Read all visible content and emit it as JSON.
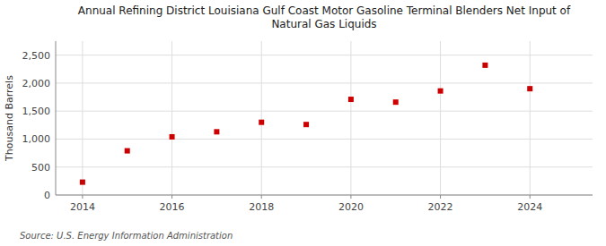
{
  "chart_data": {
    "type": "scatter",
    "title": "Annual Refining District Louisiana Gulf Coast Motor Gasoline Terminal Blenders Net Input of\nNatural Gas Liquids",
    "y_label": "Thousand Barrels",
    "source": "Source: U.S. Energy Information Administration",
    "x": [
      2014,
      2015,
      2016,
      2017,
      2018,
      2019,
      2020,
      2021,
      2022,
      2023,
      2024
    ],
    "values": [
      230,
      790,
      1040,
      1130,
      1300,
      1260,
      1710,
      1660,
      1860,
      2320,
      1900
    ],
    "color": "#cc0000",
    "marker": "square",
    "xlim": [
      2013.4,
      2025.4
    ],
    "ylim": [
      0,
      2750
    ],
    "xticks": [
      2014,
      2016,
      2018,
      2020,
      2022,
      2024
    ],
    "yticks": [
      0,
      500,
      {
        "value": 1000,
        "label": "1,000"
      },
      {
        "value": 1500,
        "label": "1,500"
      },
      {
        "value": 2000,
        "label": "2,000"
      },
      {
        "value": 2500,
        "label": "2,500"
      }
    ],
    "grid": true
  }
}
